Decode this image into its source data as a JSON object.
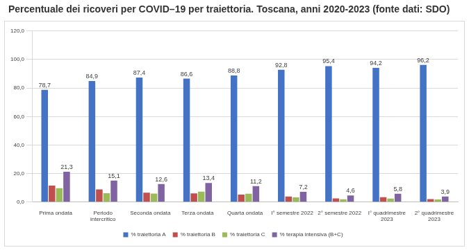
{
  "chart_data": {
    "type": "bar",
    "title": "Percentuale dei ricoveri per COVID–19 per traiettoria. Toscana, anni 2020-2023 (fonte dati: SDO)",
    "categories": [
      "Prima ondata",
      "Periodo intercritico",
      "Seconda ondata",
      "Terza ondata",
      "Quarta ondata",
      "I° semestre 2022",
      "2° semestre 2022",
      "I° quadrimestre 2023",
      "2° quadrimestre 2023"
    ],
    "series": [
      {
        "name": "% traiettoria A",
        "color": "#4472c4",
        "values": [
          78.7,
          84.9,
          87.4,
          86.6,
          88.8,
          92.8,
          95.4,
          94.2,
          96.2
        ],
        "value_labels": [
          "78,7",
          "84,9",
          "87,4",
          "86,6",
          "88,8",
          "92,8",
          "95,4",
          "94,2",
          "96,2"
        ]
      },
      {
        "name": "% traiettoria B",
        "color": "#c0504d",
        "values": [
          11.6,
          8.9,
          6.6,
          6.1,
          5.3,
          3.9,
          2.6,
          3.4,
          2.1
        ]
      },
      {
        "name": "% traiettoria C",
        "color": "#9bbb59",
        "values": [
          9.7,
          6.2,
          6.0,
          7.3,
          5.9,
          3.3,
          2.0,
          2.4,
          1.8
        ]
      },
      {
        "name": "% terapia intensiva (B+C)",
        "color": "#8064a2",
        "values": [
          21.3,
          15.1,
          12.6,
          13.4,
          11.2,
          7.2,
          4.6,
          5.8,
          3.9
        ],
        "value_labels": [
          "21,3",
          "15,1",
          "12,6",
          "13,4",
          "11,2",
          "7,2",
          "4,6",
          "5,8",
          "3,9"
        ]
      }
    ],
    "ylim": [
      0,
      120
    ],
    "yticks": [
      {
        "value": 0,
        "label": "0,0"
      },
      {
        "value": 20,
        "label": "20,0"
      },
      {
        "value": 40,
        "label": "40,0"
      },
      {
        "value": 60,
        "label": "60,0"
      },
      {
        "value": 80,
        "label": "80,0"
      },
      {
        "value": 100,
        "label": "100,0"
      },
      {
        "value": 120,
        "label": "120,0"
      }
    ],
    "grid": true,
    "legend": "bottom",
    "data_labels": true
  }
}
